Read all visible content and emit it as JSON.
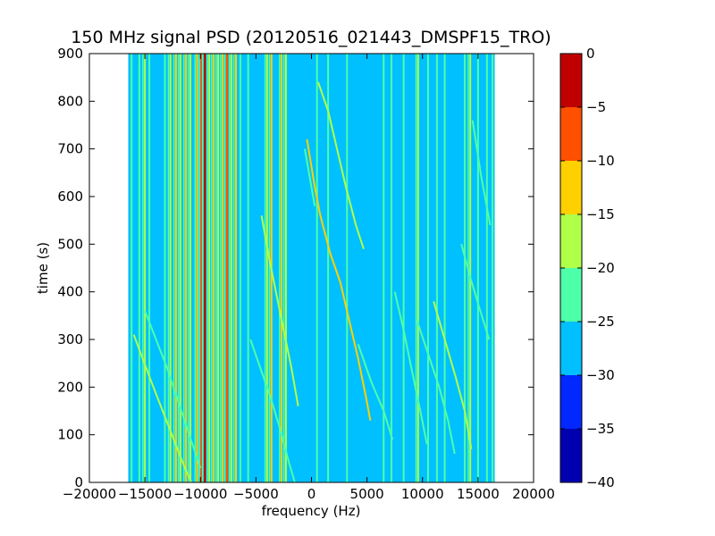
{
  "chart_data": {
    "type": "heatmap",
    "title": "150 MHz signal PSD (20120516_021443_DMSPF15_TRO)",
    "xlabel": "frequency (Hz)",
    "ylabel": "time (s)",
    "xlim": [
      -20000,
      20000
    ],
    "ylim": [
      0,
      900
    ],
    "xticks": [
      -20000,
      -15000,
      -10000,
      -5000,
      0,
      5000,
      10000,
      15000,
      20000
    ],
    "yticks": [
      0,
      100,
      200,
      300,
      400,
      500,
      600,
      700,
      800,
      900
    ],
    "data_extent": {
      "freq": [
        -16500,
        16500
      ],
      "time": [
        0,
        900
      ]
    },
    "background_level": -27.5,
    "colorbar": {
      "levels": [
        -40,
        -35,
        -30,
        -25,
        -20,
        -15,
        -10,
        -5,
        0
      ],
      "colors": [
        "#0000b0",
        "#0028ff",
        "#00c0ff",
        "#4cffa8",
        "#b0ff48",
        "#ffd000",
        "#ff5000",
        "#c00000"
      ]
    },
    "vertical_lines": [
      {
        "freq": -16200,
        "level": -22
      },
      {
        "freq": -15500,
        "level": -22
      },
      {
        "freq": -15000,
        "level": -17
      },
      {
        "freq": -14600,
        "level": -22
      },
      {
        "freq": -13200,
        "level": -22
      },
      {
        "freq": -12700,
        "level": -17
      },
      {
        "freq": -12200,
        "level": -12
      },
      {
        "freq": -11800,
        "level": -17
      },
      {
        "freq": -11300,
        "level": -12
      },
      {
        "freq": -10900,
        "level": -17
      },
      {
        "freq": -10300,
        "level": -12
      },
      {
        "freq": -9900,
        "level": -7
      },
      {
        "freq": -9600,
        "level": -2
      },
      {
        "freq": -9200,
        "level": -17
      },
      {
        "freq": -8800,
        "level": -12
      },
      {
        "freq": -8400,
        "level": -17
      },
      {
        "freq": -8000,
        "level": -12
      },
      {
        "freq": -7600,
        "level": -7
      },
      {
        "freq": -7200,
        "level": -17
      },
      {
        "freq": -6800,
        "level": -12
      },
      {
        "freq": -6400,
        "level": -22
      },
      {
        "freq": -5700,
        "level": -22
      },
      {
        "freq": -4000,
        "level": -17
      },
      {
        "freq": -3600,
        "level": -12
      },
      {
        "freq": -2700,
        "level": -12
      },
      {
        "freq": -2300,
        "level": -17
      },
      {
        "freq": 500,
        "level": -22
      },
      {
        "freq": 1500,
        "level": -22
      },
      {
        "freq": 3200,
        "level": -22
      },
      {
        "freq": 6500,
        "level": -22
      },
      {
        "freq": 7200,
        "level": -22
      },
      {
        "freq": 8300,
        "level": -22
      },
      {
        "freq": 9600,
        "level": -17
      },
      {
        "freq": 10500,
        "level": -22
      },
      {
        "freq": 11300,
        "level": -22
      },
      {
        "freq": 12000,
        "level": -22
      },
      {
        "freq": 13800,
        "level": -22
      },
      {
        "freq": 14300,
        "level": -17
      },
      {
        "freq": 15000,
        "level": -22
      },
      {
        "freq": 15800,
        "level": -22
      },
      {
        "freq": 16300,
        "level": -22
      }
    ],
    "trace_curves": [
      {
        "level": -12,
        "points": [
          [
            -400,
            720
          ],
          [
            300,
            620
          ],
          [
            800,
            560
          ],
          [
            1700,
            480
          ],
          [
            2600,
            420
          ],
          [
            3400,
            340
          ],
          [
            4200,
            260
          ],
          [
            4900,
            180
          ],
          [
            5300,
            130
          ]
        ]
      },
      {
        "level": -17,
        "points": [
          [
            600,
            840
          ],
          [
            1500,
            780
          ],
          [
            2300,
            700
          ],
          [
            3100,
            620
          ],
          [
            4000,
            540
          ],
          [
            4700,
            490
          ]
        ]
      },
      {
        "level": -22,
        "points": [
          [
            -600,
            700
          ],
          [
            300,
            580
          ]
        ]
      },
      {
        "level": -22,
        "points": [
          [
            4200,
            290
          ],
          [
            5400,
            210
          ],
          [
            6500,
            150
          ],
          [
            7300,
            90
          ]
        ]
      },
      {
        "level": -17,
        "points": [
          [
            -16000,
            310
          ],
          [
            -15200,
            260
          ],
          [
            -14400,
            210
          ],
          [
            -13400,
            150
          ],
          [
            -12400,
            90
          ],
          [
            -11400,
            30
          ],
          [
            -10800,
            0
          ]
        ]
      },
      {
        "level": -22,
        "points": [
          [
            -15000,
            360
          ],
          [
            -14000,
            300
          ],
          [
            -13000,
            240
          ],
          [
            -12000,
            170
          ],
          [
            -11000,
            100
          ],
          [
            -10000,
            30
          ]
        ]
      },
      {
        "level": -22,
        "points": [
          [
            -5500,
            300
          ],
          [
            -4600,
            240
          ],
          [
            -3700,
            180
          ],
          [
            -2800,
            110
          ],
          [
            -2000,
            40
          ],
          [
            -1500,
            0
          ]
        ]
      },
      {
        "level": -17,
        "points": [
          [
            -4500,
            560
          ],
          [
            -3800,
            470
          ],
          [
            -3200,
            400
          ],
          [
            -2500,
            320
          ],
          [
            -1800,
            240
          ],
          [
            -1200,
            160
          ]
        ]
      },
      {
        "level": -22,
        "points": [
          [
            7500,
            400
          ],
          [
            8300,
            320
          ],
          [
            9000,
            240
          ],
          [
            9800,
            150
          ],
          [
            10400,
            80
          ]
        ]
      },
      {
        "level": -22,
        "points": [
          [
            9500,
            340
          ],
          [
            10500,
            270
          ],
          [
            11500,
            200
          ],
          [
            12300,
            130
          ],
          [
            12900,
            60
          ]
        ]
      },
      {
        "level": -17,
        "points": [
          [
            11000,
            380
          ],
          [
            12000,
            300
          ],
          [
            13000,
            220
          ],
          [
            13800,
            150
          ],
          [
            14400,
            70
          ]
        ]
      },
      {
        "level": -22,
        "points": [
          [
            13500,
            500
          ],
          [
            14300,
            430
          ],
          [
            15200,
            360
          ],
          [
            16000,
            300
          ]
        ]
      },
      {
        "level": -22,
        "points": [
          [
            14500,
            760
          ],
          [
            15300,
            640
          ],
          [
            16100,
            540
          ]
        ]
      }
    ]
  }
}
